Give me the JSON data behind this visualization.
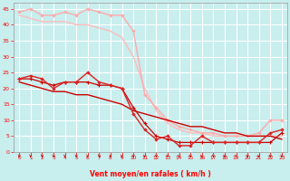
{
  "xlabel": "Vent moyen/en rafales ( km/h )",
  "background_color": "#c8eeee",
  "grid_color": "#aadddd",
  "x": [
    0,
    1,
    2,
    3,
    4,
    5,
    6,
    7,
    8,
    9,
    10,
    11,
    12,
    13,
    14,
    15,
    16,
    17,
    18,
    19,
    20,
    21,
    22,
    23
  ],
  "line1_color": "#ffaaaa",
  "line2_color": "#ffbbbb",
  "line3_color": "#dd2222",
  "line4_color": "#cc0000",
  "line5_color": "#cc0000",
  "line1_y": [
    44,
    45,
    43,
    43,
    44,
    43,
    45,
    44,
    43,
    43,
    38,
    18,
    14,
    10,
    8,
    7,
    6,
    6,
    5,
    5,
    5,
    6,
    10,
    10
  ],
  "line2_y": [
    43,
    42,
    41,
    41,
    41,
    40,
    40,
    39,
    38,
    36,
    30,
    20,
    13,
    9,
    7,
    6,
    6,
    5,
    5,
    5,
    5,
    5,
    5,
    5
  ],
  "line3_y": [
    23,
    24,
    23,
    20,
    22,
    22,
    25,
    22,
    21,
    20,
    12,
    7,
    4,
    5,
    2,
    2,
    5,
    3,
    3,
    3,
    3,
    3,
    6,
    7
  ],
  "line4_y": [
    23,
    23,
    22,
    21,
    22,
    22,
    22,
    21,
    21,
    20,
    14,
    9,
    5,
    4,
    3,
    3,
    3,
    3,
    3,
    3,
    3,
    3,
    3,
    6
  ],
  "line5_y": [
    22,
    21,
    20,
    19,
    19,
    18,
    18,
    17,
    16,
    15,
    13,
    12,
    11,
    10,
    9,
    8,
    8,
    7,
    6,
    6,
    5,
    5,
    5,
    4
  ],
  "ylim": [
    0,
    47
  ],
  "xlim": [
    -0.5,
    23.5
  ],
  "yticks": [
    0,
    5,
    10,
    15,
    20,
    25,
    30,
    35,
    40,
    45
  ],
  "xtick_labels": [
    "0",
    "1",
    "2",
    "3",
    "4",
    "5",
    "6",
    "7",
    "8",
    "9",
    "10",
    "11",
    "12",
    "13",
    "14",
    "15",
    "16",
    "17",
    "18",
    "19",
    "20",
    "21",
    "22",
    "23"
  ]
}
